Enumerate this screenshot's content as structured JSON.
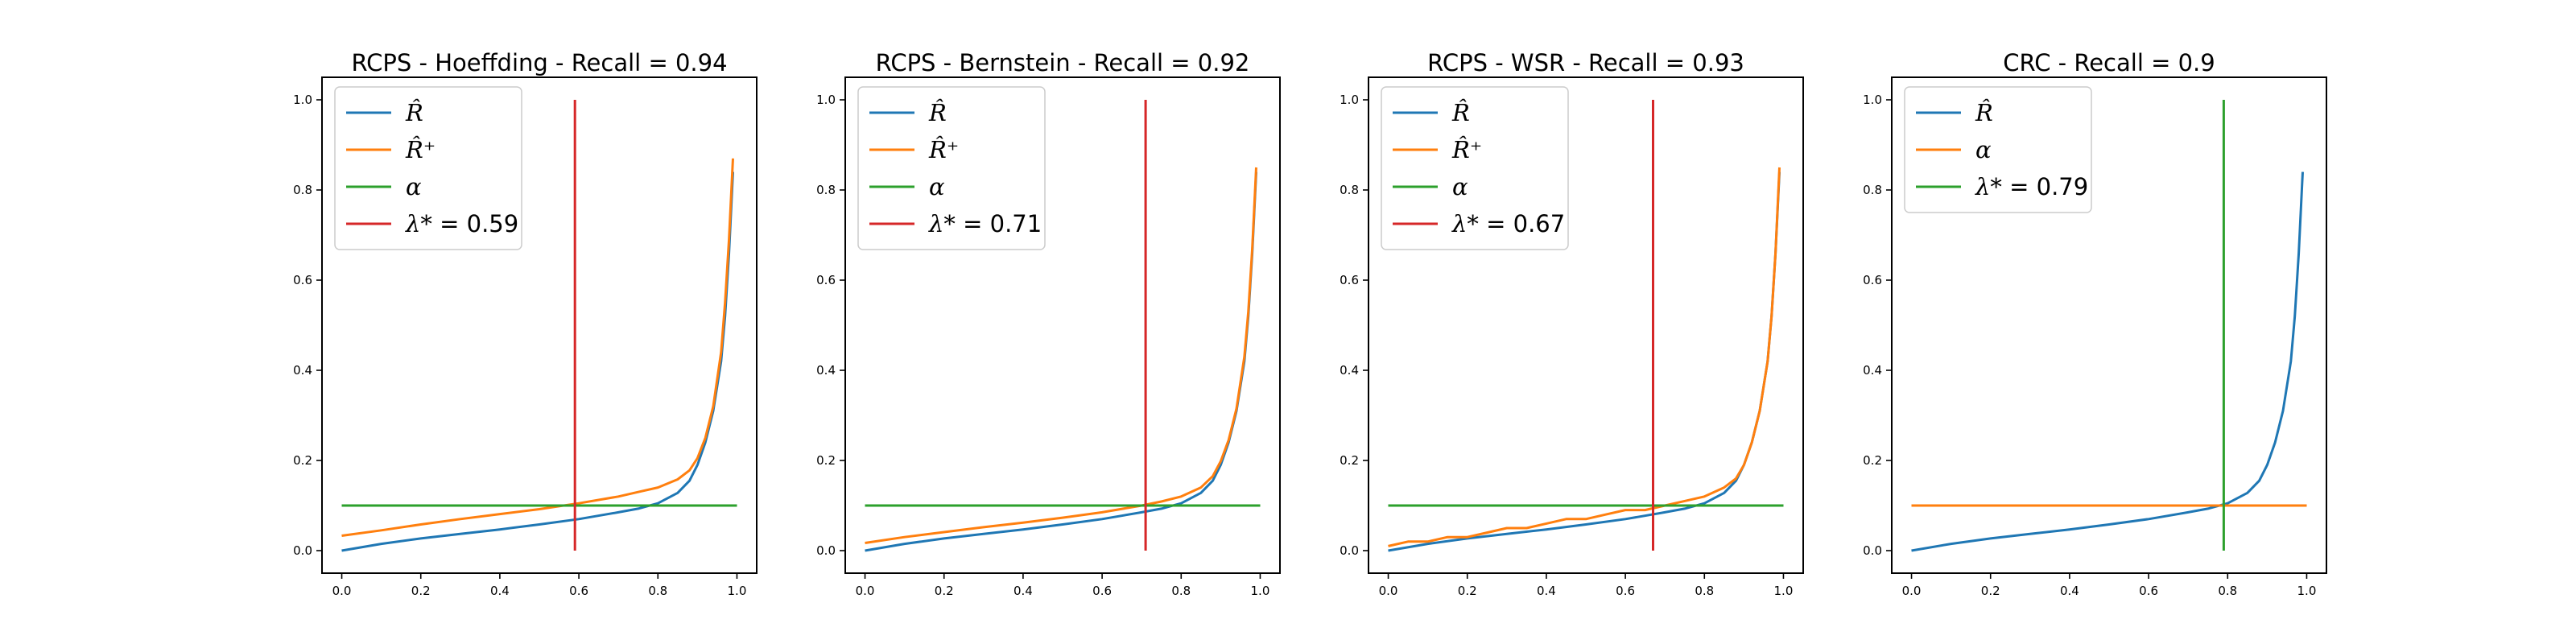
{
  "colors": {
    "blue": "#1f77b4",
    "orange": "#ff7f0e",
    "green": "#2ca02c",
    "red": "#d62728"
  },
  "chart_data": [
    {
      "type": "line",
      "title": "RCPS - Hoeffding - Recall = 0.94",
      "xlim": [
        -0.05,
        1.05
      ],
      "ylim": [
        -0.05,
        1.05
      ],
      "xticks": [
        "0.0",
        "0.2",
        "0.4",
        "0.6",
        "0.8",
        "1.0"
      ],
      "yticks": [
        "0.0",
        "0.2",
        "0.4",
        "0.6",
        "0.8",
        "1.0"
      ],
      "legend_position": "top-left",
      "legend": [
        {
          "label": "R̂",
          "color": "#1f77b4"
        },
        {
          "label": "R̂⁺",
          "color": "#ff7f0e"
        },
        {
          "label": "α",
          "color": "#2ca02c"
        },
        {
          "label": "λ* = 0.59",
          "color": "#d62728"
        }
      ],
      "series": [
        {
          "name": "R̂",
          "color": "#1f77b4",
          "x": [
            0,
            0.1,
            0.2,
            0.3,
            0.4,
            0.5,
            0.6,
            0.7,
            0.75,
            0.8,
            0.85,
            0.88,
            0.9,
            0.92,
            0.94,
            0.96,
            0.97,
            0.98,
            0.99
          ],
          "y": [
            0.0,
            0.015,
            0.027,
            0.037,
            0.047,
            0.058,
            0.07,
            0.085,
            0.093,
            0.105,
            0.128,
            0.155,
            0.19,
            0.24,
            0.31,
            0.42,
            0.52,
            0.66,
            0.84
          ]
        },
        {
          "name": "R̂⁺",
          "color": "#ff7f0e",
          "x": [
            0,
            0.1,
            0.2,
            0.3,
            0.4,
            0.5,
            0.6,
            0.7,
            0.75,
            0.8,
            0.85,
            0.88,
            0.9,
            0.92,
            0.94,
            0.96,
            0.97,
            0.98,
            0.99
          ],
          "y": [
            0.033,
            0.045,
            0.058,
            0.07,
            0.081,
            0.092,
            0.105,
            0.12,
            0.13,
            0.14,
            0.158,
            0.178,
            0.205,
            0.25,
            0.32,
            0.44,
            0.55,
            0.69,
            0.87
          ]
        },
        {
          "name": "α",
          "color": "#2ca02c",
          "x": [
            0,
            1
          ],
          "y": [
            0.1,
            0.1
          ]
        },
        {
          "name": "λ* = 0.59",
          "color": "#d62728",
          "x": [
            0.59,
            0.59
          ],
          "y": [
            0,
            1
          ]
        }
      ]
    },
    {
      "type": "line",
      "title": "RCPS - Bernstein - Recall = 0.92",
      "xlim": [
        -0.05,
        1.05
      ],
      "ylim": [
        -0.05,
        1.05
      ],
      "xticks": [
        "0.0",
        "0.2",
        "0.4",
        "0.6",
        "0.8",
        "1.0"
      ],
      "yticks": [
        "0.0",
        "0.2",
        "0.4",
        "0.6",
        "0.8",
        "1.0"
      ],
      "legend_position": "top-left",
      "legend": [
        {
          "label": "R̂",
          "color": "#1f77b4"
        },
        {
          "label": "R̂⁺",
          "color": "#ff7f0e"
        },
        {
          "label": "α",
          "color": "#2ca02c"
        },
        {
          "label": "λ* = 0.71",
          "color": "#d62728"
        }
      ],
      "series": [
        {
          "name": "R̂",
          "color": "#1f77b4",
          "x": [
            0,
            0.1,
            0.2,
            0.3,
            0.4,
            0.5,
            0.6,
            0.7,
            0.75,
            0.8,
            0.85,
            0.88,
            0.9,
            0.92,
            0.94,
            0.96,
            0.97,
            0.98,
            0.99
          ],
          "y": [
            0.0,
            0.015,
            0.027,
            0.037,
            0.047,
            0.058,
            0.07,
            0.085,
            0.093,
            0.105,
            0.128,
            0.155,
            0.19,
            0.24,
            0.31,
            0.42,
            0.52,
            0.66,
            0.84
          ]
        },
        {
          "name": "R̂⁺",
          "color": "#ff7f0e",
          "x": [
            0,
            0.1,
            0.2,
            0.3,
            0.4,
            0.5,
            0.6,
            0.7,
            0.75,
            0.8,
            0.85,
            0.88,
            0.9,
            0.92,
            0.94,
            0.96,
            0.97,
            0.98,
            0.99
          ],
          "y": [
            0.017,
            0.03,
            0.041,
            0.052,
            0.062,
            0.073,
            0.085,
            0.1,
            0.109,
            0.12,
            0.14,
            0.165,
            0.198,
            0.245,
            0.315,
            0.43,
            0.53,
            0.67,
            0.85
          ]
        },
        {
          "name": "α",
          "color": "#2ca02c",
          "x": [
            0,
            1
          ],
          "y": [
            0.1,
            0.1
          ]
        },
        {
          "name": "λ* = 0.71",
          "color": "#d62728",
          "x": [
            0.71,
            0.71
          ],
          "y": [
            0,
            1
          ]
        }
      ]
    },
    {
      "type": "line",
      "title": "RCPS - WSR - Recall = 0.93",
      "xlim": [
        -0.05,
        1.05
      ],
      "ylim": [
        -0.05,
        1.05
      ],
      "xticks": [
        "0.0",
        "0.2",
        "0.4",
        "0.6",
        "0.8",
        "1.0"
      ],
      "yticks": [
        "0.0",
        "0.2",
        "0.4",
        "0.6",
        "0.8",
        "1.0"
      ],
      "legend_position": "top-left",
      "legend": [
        {
          "label": "R̂",
          "color": "#1f77b4"
        },
        {
          "label": "R̂⁺",
          "color": "#ff7f0e"
        },
        {
          "label": "α",
          "color": "#2ca02c"
        },
        {
          "label": "λ* = 0.67",
          "color": "#d62728"
        }
      ],
      "series": [
        {
          "name": "R̂",
          "color": "#1f77b4",
          "x": [
            0,
            0.1,
            0.2,
            0.3,
            0.4,
            0.5,
            0.6,
            0.7,
            0.75,
            0.8,
            0.85,
            0.88,
            0.9,
            0.92,
            0.94,
            0.96,
            0.97,
            0.98,
            0.99
          ],
          "y": [
            0.0,
            0.015,
            0.027,
            0.037,
            0.047,
            0.058,
            0.07,
            0.085,
            0.093,
            0.105,
            0.128,
            0.155,
            0.19,
            0.24,
            0.31,
            0.42,
            0.52,
            0.66,
            0.84
          ]
        },
        {
          "name": "R̂⁺",
          "color": "#ff7f0e",
          "x": [
            0,
            0.05,
            0.1,
            0.15,
            0.2,
            0.25,
            0.3,
            0.35,
            0.4,
            0.45,
            0.5,
            0.55,
            0.6,
            0.65,
            0.7,
            0.75,
            0.8,
            0.85,
            0.88,
            0.9,
            0.92,
            0.94,
            0.96,
            0.97,
            0.98,
            0.99
          ],
          "y": [
            0.01,
            0.02,
            0.02,
            0.03,
            0.03,
            0.04,
            0.05,
            0.05,
            0.06,
            0.07,
            0.07,
            0.08,
            0.09,
            0.09,
            0.1,
            0.11,
            0.12,
            0.14,
            0.16,
            0.19,
            0.24,
            0.31,
            0.42,
            0.52,
            0.66,
            0.85
          ]
        },
        {
          "name": "α",
          "color": "#2ca02c",
          "x": [
            0,
            1
          ],
          "y": [
            0.1,
            0.1
          ]
        },
        {
          "name": "λ* = 0.67",
          "color": "#d62728",
          "x": [
            0.67,
            0.67
          ],
          "y": [
            0,
            1
          ]
        }
      ]
    },
    {
      "type": "line",
      "title": "CRC - Recall = 0.9",
      "xlim": [
        -0.05,
        1.05
      ],
      "ylim": [
        -0.05,
        1.05
      ],
      "xticks": [
        "0.0",
        "0.2",
        "0.4",
        "0.6",
        "0.8",
        "1.0"
      ],
      "yticks": [
        "0.0",
        "0.2",
        "0.4",
        "0.6",
        "0.8",
        "1.0"
      ],
      "legend_position": "top-left",
      "legend": [
        {
          "label": "R̂",
          "color": "#1f77b4"
        },
        {
          "label": "α",
          "color": "#ff7f0e"
        },
        {
          "label": "λ* = 0.79",
          "color": "#2ca02c"
        }
      ],
      "series": [
        {
          "name": "R̂",
          "color": "#1f77b4",
          "x": [
            0,
            0.1,
            0.2,
            0.3,
            0.4,
            0.5,
            0.6,
            0.7,
            0.75,
            0.8,
            0.85,
            0.88,
            0.9,
            0.92,
            0.94,
            0.96,
            0.97,
            0.98,
            0.99
          ],
          "y": [
            0.0,
            0.015,
            0.027,
            0.037,
            0.047,
            0.058,
            0.07,
            0.085,
            0.093,
            0.105,
            0.128,
            0.155,
            0.19,
            0.24,
            0.31,
            0.42,
            0.52,
            0.66,
            0.84
          ]
        },
        {
          "name": "α",
          "color": "#ff7f0e",
          "x": [
            0,
            1
          ],
          "y": [
            0.1,
            0.1
          ]
        },
        {
          "name": "λ* = 0.79",
          "color": "#2ca02c",
          "x": [
            0.79,
            0.79
          ],
          "y": [
            0,
            1
          ]
        }
      ]
    }
  ]
}
